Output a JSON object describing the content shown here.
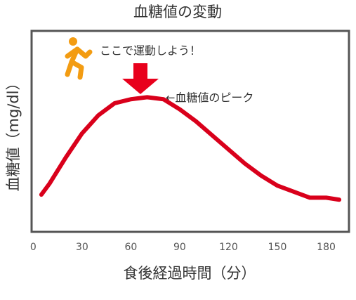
{
  "chart_data": {
    "type": "line",
    "title": "血糖値の変動",
    "x_label": "食後経過時間（分）",
    "y_label": "血糖値（mg/dl）",
    "annotations": [
      "ここで運動しよう！",
      "←血糖値のピーク"
    ],
    "x": [
      5,
      10,
      20,
      30,
      40,
      50,
      60,
      70,
      80,
      90,
      100,
      110,
      120,
      130,
      140,
      150,
      160,
      170,
      180,
      188
    ],
    "series": [
      {
        "name": "血糖値",
        "color": "#d9001b",
        "values": [
          18.5,
          24,
          37,
          49,
          58,
          64,
          66,
          67,
          66,
          61,
          55,
          48,
          41,
          34,
          28,
          23,
          20,
          17,
          17,
          16
        ]
      }
    ],
    "xlim": [
      -1,
      194
    ],
    "ylim": [
      0,
      100
    ],
    "xticks": [
      0,
      30,
      60,
      90,
      120,
      150,
      180
    ]
  }
}
